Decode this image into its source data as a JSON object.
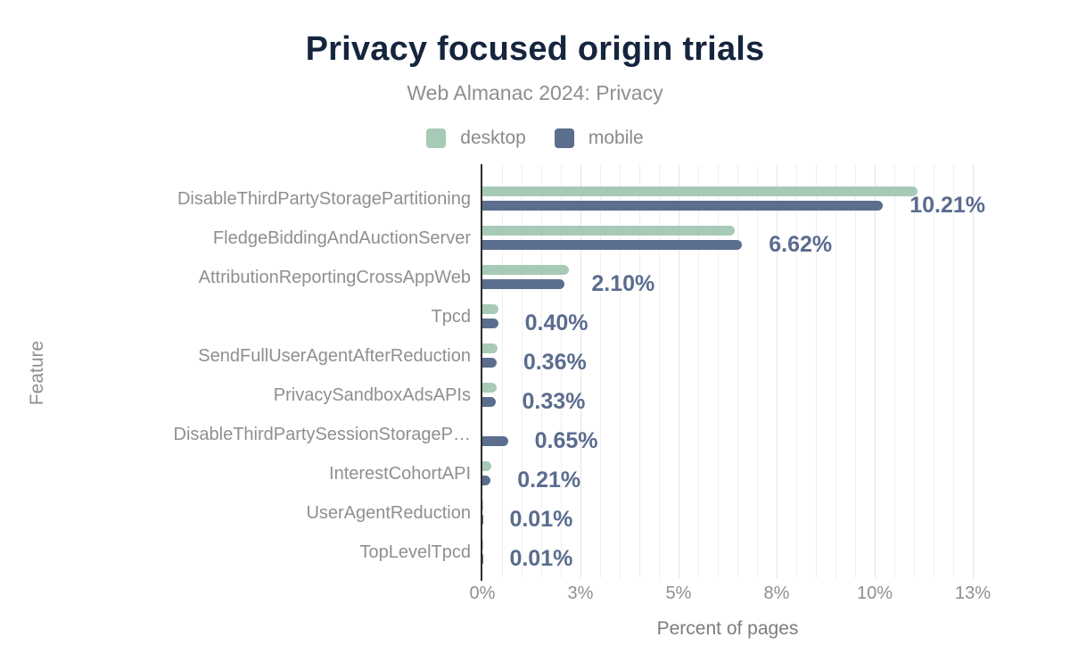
{
  "header": {
    "title": "Privacy focused origin trials",
    "subtitle": "Web Almanac 2024: Privacy"
  },
  "legend": [
    {
      "label": "desktop",
      "color": "#a7cab6"
    },
    {
      "label": "mobile",
      "color": "#5b6e8e"
    }
  ],
  "chart_data": {
    "type": "bar",
    "orientation": "horizontal",
    "title": "Privacy focused origin trials",
    "subtitle": "Web Almanac 2024: Privacy",
    "xlabel": "Percent of pages",
    "ylabel": "Feature",
    "xlim": [
      0,
      12.6
    ],
    "grid": "vertical minor lines every 0.5%, legend top center",
    "x_ticks": [
      {
        "value": 0,
        "label": "0%"
      },
      {
        "value": 2.5,
        "label": "3%"
      },
      {
        "value": 5,
        "label": "5%"
      },
      {
        "value": 7.5,
        "label": "8%"
      },
      {
        "value": 10,
        "label": "10%"
      },
      {
        "value": 12.5,
        "label": "13%"
      }
    ],
    "categories": [
      "DisableThirdPartyStoragePartitioning",
      "FledgeBiddingAndAuctionServer",
      "AttributionReportingCrossAppWeb",
      "Tpcd",
      "SendFullUserAgentAfterReduction",
      "PrivacySandboxAdsAPIs",
      "DisableThirdPartySessionStorageP…",
      "InterestCohortAPI",
      "UserAgentReduction",
      "TopLevelTpcd"
    ],
    "series": [
      {
        "name": "desktop",
        "color": "#a7cab6",
        "values": [
          11.1,
          6.44,
          2.2,
          0.41,
          0.39,
          0.37,
          0.0,
          0.23,
          0.01,
          0.01
        ]
      },
      {
        "name": "mobile",
        "color": "#5b6e8e",
        "values": [
          10.21,
          6.62,
          2.1,
          0.4,
          0.36,
          0.33,
          0.65,
          0.21,
          0.01,
          0.01
        ]
      }
    ],
    "data_labels": [
      "10.21%",
      "6.62%",
      "2.10%",
      "0.40%",
      "0.36%",
      "0.33%",
      "0.65%",
      "0.21%",
      "0.01%",
      "0.01%"
    ],
    "data_label_series": "mobile"
  },
  "colors": {
    "title": "#16253e",
    "subtitle": "#8f8f8f",
    "axis_text": "#8f8f8f",
    "value_label": "#5a6c8e",
    "axis_line": "#2d2d2d",
    "desktop": "#a7cab6",
    "mobile": "#5b6e8e"
  }
}
